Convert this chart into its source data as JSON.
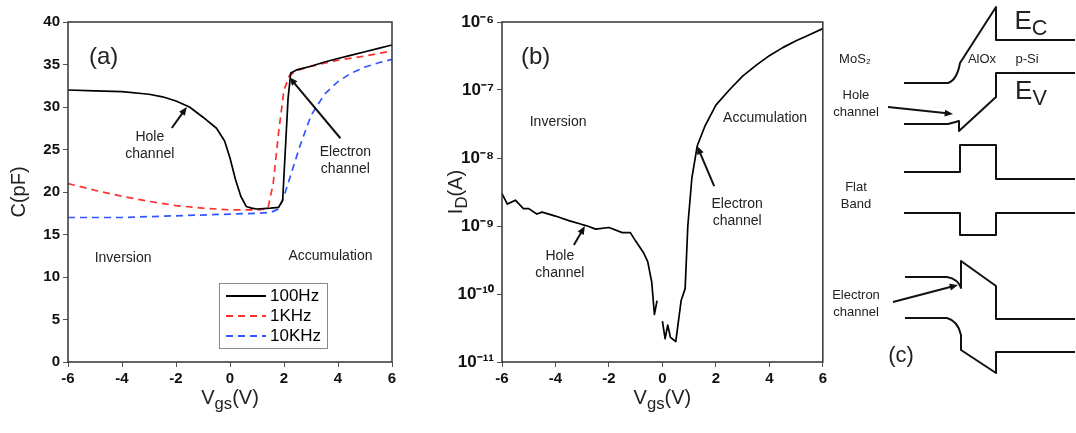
{
  "chart_data": [
    {
      "type": "line",
      "xlabel": "V$_{gs}$(V)",
      "ylabel": "C(pF)",
      "xlim": [
        -6,
        6
      ],
      "xticks": [
        -6,
        -4,
        -2,
        0,
        2,
        4,
        6
      ],
      "ylim": [
        0,
        40
      ],
      "yticks": [
        0,
        5,
        10,
        15,
        20,
        25,
        30,
        35,
        40
      ],
      "grid": false,
      "legend": "bottom right",
      "marker": "none",
      "annotations": [
        "(a)",
        "Inversion",
        "Accumulation",
        {
          "text": "Hole\nchannel",
          "x": -1.6,
          "y": 30
        },
        {
          "text": "Electron\nchannel",
          "x": 2.2,
          "y": 33.5
        }
      ],
      "series": [
        {
          "name": "100Hz",
          "color": "#000000",
          "line_style": "solid",
          "x": [
            -6,
            -5,
            -4,
            -3,
            -2.5,
            -2,
            -1.5,
            -1,
            -0.5,
            -0.2,
            0,
            0.2,
            0.4,
            0.6,
            0.8,
            1,
            1.5,
            1.8,
            1.95,
            2.05,
            2.15,
            2.25,
            2.5,
            3,
            3.5,
            4,
            4.5,
            5,
            5.5,
            6
          ],
          "values": [
            32,
            31.9,
            31.8,
            31.5,
            31.2,
            30.7,
            30,
            28.8,
            27.5,
            26,
            24,
            21.5,
            19.5,
            18.3,
            18.1,
            18,
            18.1,
            18.2,
            19,
            25,
            31,
            34,
            34.4,
            34.8,
            35.3,
            35.7,
            36.1,
            36.5,
            36.9,
            37.3
          ]
        },
        {
          "name": "1KHz",
          "color": "#ff3030",
          "line_style": "dashed",
          "x": [
            -6,
            -5,
            -4,
            -3,
            -2,
            -1,
            0,
            1,
            1.4,
            1.6,
            1.8,
            2,
            2.2,
            2.5,
            3,
            4,
            5,
            6
          ],
          "values": [
            21,
            20.2,
            19.5,
            18.9,
            18.4,
            18.1,
            17.9,
            17.9,
            18,
            21,
            27,
            32,
            33.7,
            34.3,
            34.8,
            35.5,
            36,
            36.6
          ]
        },
        {
          "name": "10KHz",
          "color": "#3355ff",
          "line_style": "dashed",
          "x": [
            -6,
            -4,
            -2,
            0,
            1,
            1.5,
            1.8,
            2,
            2.3,
            2.6,
            3,
            3.5,
            4,
            4.5,
            5,
            5.5,
            6
          ],
          "values": [
            17,
            17,
            17.2,
            17.4,
            17.5,
            17.6,
            18,
            19.5,
            22.5,
            25.5,
            29,
            31.5,
            33,
            34,
            34.7,
            35.2,
            35.6
          ]
        }
      ]
    },
    {
      "type": "line",
      "xlabel": "V$_{gs}$(V)",
      "ylabel": "I$_{D}$(A)",
      "log": "y",
      "xlim": [
        -6,
        6
      ],
      "xticks": [
        -6,
        -4,
        -2,
        0,
        2,
        4,
        6
      ],
      "ylim": [
        1e-11,
        1e-06
      ],
      "yticks": [
        {
          "value": 1e-11,
          "label": "10⁻¹¹"
        },
        {
          "value": 1e-10,
          "label": "10⁻¹⁰"
        },
        {
          "value": 1e-09,
          "label": "10⁻⁹"
        },
        {
          "value": 1e-08,
          "label": "10⁻⁸"
        },
        {
          "value": 1e-07,
          "label": "10⁻⁷"
        },
        {
          "value": 1e-06,
          "label": "10⁻⁶"
        }
      ],
      "grid": false,
      "marker": "none",
      "annotations": [
        "(b)",
        "Inversion",
        "Accumulation",
        {
          "text": "Hole\nchannel",
          "x": -2.9,
          "y": 1e-09
        },
        {
          "text": "Electron\nchannel",
          "x": 1.3,
          "y": 1.5e-08
        }
      ],
      "series": [
        {
          "color": "#000000",
          "line_style": "solid",
          "x": [
            -6,
            -5.8,
            -5.5,
            -5.2,
            -5,
            -4.7,
            -4.5,
            -4,
            -3.5,
            -3,
            -2.8,
            -2.5,
            -2,
            -1.5,
            -1.2,
            -1,
            -0.7,
            -0.55,
            -0.4,
            -0.3,
            -0.2,
            -0.1,
            0,
            0.1,
            0.2,
            0.3,
            0.5,
            0.7,
            0.85,
            0.95,
            1.1,
            1.3,
            1.6,
            2,
            2.5,
            3,
            3.5,
            4,
            4.5,
            5,
            5.5,
            6
          ],
          "values": [
            3e-09,
            2.1e-09,
            2.4e-09,
            1.8e-09,
            1.8e-09,
            1.5e-09,
            1.6e-09,
            1.4e-09,
            1.2e-09,
            1.05e-09,
            1e-09,
            9e-10,
            9.5e-10,
            8e-10,
            8e-10,
            6e-10,
            4e-10,
            3e-10,
            1.5e-10,
            5e-11,
            8e-11,
            null,
            4e-11,
            2.2e-11,
            3.5e-11,
            2.3e-11,
            2e-11,
            8e-11,
            1.2e-10,
            1e-09,
            5e-09,
            1.5e-08,
            3e-08,
            6e-08,
            1e-07,
            1.6e-07,
            2.3e-07,
            3.2e-07,
            4.2e-07,
            5.3e-07,
            6.5e-07,
            8e-07
          ]
        }
      ]
    },
    {
      "type": "other",
      "annotations": [
        "MoS₂",
        "AlOx",
        "p-Si",
        "E$_{C}$",
        "E$_{V}$",
        "Hole\nchannel",
        "Flat\nBand",
        "Electron\nchannel",
        "(c)"
      ]
    }
  ]
}
